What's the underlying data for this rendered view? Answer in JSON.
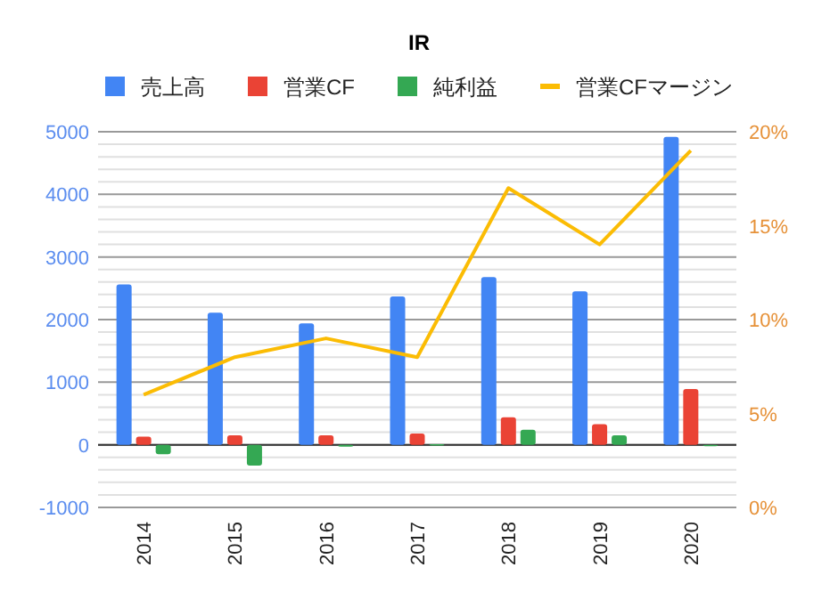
{
  "chart_data": {
    "type": "bar",
    "title": "IR",
    "categories": [
      "2014",
      "2015",
      "2016",
      "2017",
      "2018",
      "2019",
      "2020"
    ],
    "series": [
      {
        "name": "売上高",
        "color": "#4285f4",
        "values": [
          2560,
          2110,
          1940,
          2370,
          2680,
          2450,
          4920
        ]
      },
      {
        "name": "営業CF",
        "color": "#ea4335",
        "values": [
          130,
          150,
          150,
          180,
          440,
          330,
          890
        ]
      },
      {
        "name": "純利益",
        "color": "#34a853",
        "values": [
          -150,
          -330,
          -30,
          10,
          240,
          150,
          -20
        ]
      },
      {
        "name": "営業CFマージン",
        "color": "#fbbc04",
        "type": "line",
        "axis": "y2",
        "values": [
          6,
          8,
          9,
          8,
          17,
          14,
          19
        ]
      }
    ],
    "ylim": [
      -1000,
      5000
    ],
    "yticks": [
      -1000,
      0,
      1000,
      2000,
      3000,
      4000,
      5000
    ],
    "y2lim": [
      0,
      20
    ],
    "y2ticks": [
      {
        "value": 0,
        "label": "0%"
      },
      {
        "value": 5,
        "label": "5%"
      },
      {
        "value": 10,
        "label": "10%"
      },
      {
        "value": 15,
        "label": "15%"
      },
      {
        "value": 20,
        "label": "20%"
      }
    ],
    "grid": true,
    "legend": "top"
  }
}
